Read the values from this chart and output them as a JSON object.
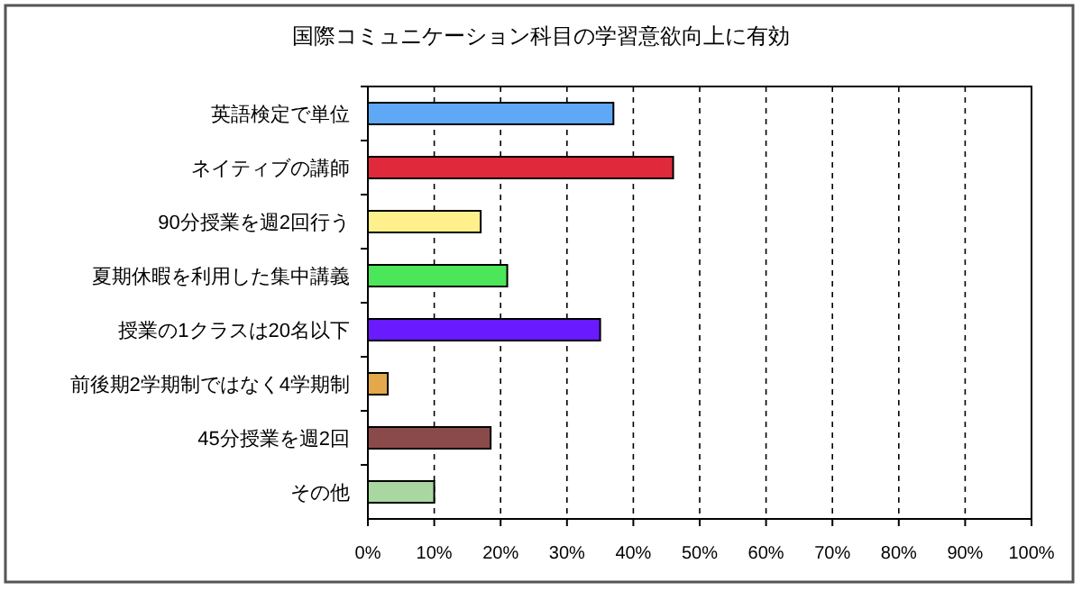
{
  "chart_data": {
    "type": "bar",
    "orientation": "horizontal",
    "title": "国際コミュニケーション科目の学習意欲向上に有効",
    "categories": [
      "英語検定で単位",
      "ネイティブの講師",
      "90分授業を週2回行う",
      "夏期休暇を利用した集中講義",
      "授業の1クラスは20名以下",
      "前後期2学期制ではなく4学期制",
      "45分授業を週2回",
      "その他"
    ],
    "values": [
      37,
      46,
      17,
      21,
      35,
      3,
      18.5,
      10
    ],
    "colors": [
      "#5fa8f5",
      "#e0293a",
      "#fff08c",
      "#4ce65a",
      "#6a1aff",
      "#e3a84a",
      "#8b4a4a",
      "#a8d8a0"
    ],
    "xlim": [
      0,
      100
    ],
    "xticks": [
      {
        "value": 0,
        "label": "0%"
      },
      {
        "value": 10,
        "label": "10%"
      },
      {
        "value": 20,
        "label": "20%"
      },
      {
        "value": 30,
        "label": "30%"
      },
      {
        "value": 40,
        "label": "40%"
      },
      {
        "value": 50,
        "label": "50%"
      },
      {
        "value": 60,
        "label": "60%"
      },
      {
        "value": 70,
        "label": "70%"
      },
      {
        "value": 80,
        "label": "80%"
      },
      {
        "value": 90,
        "label": "90%"
      },
      {
        "value": 100,
        "label": "100%"
      }
    ],
    "grid": "x"
  }
}
